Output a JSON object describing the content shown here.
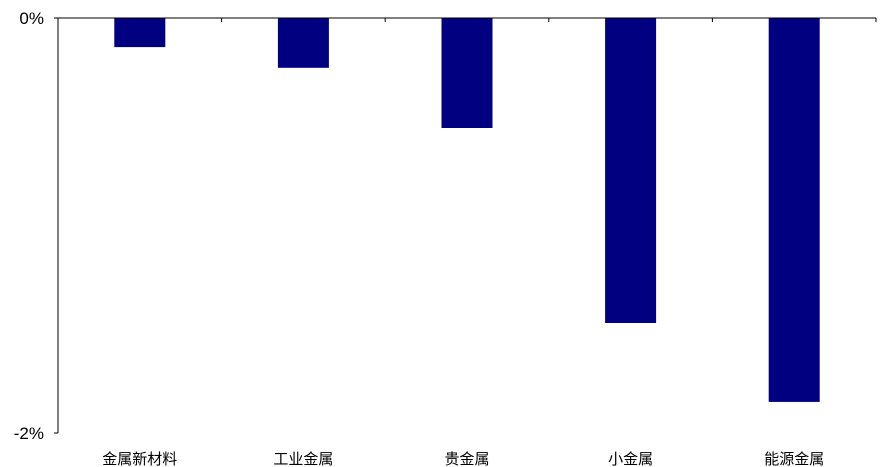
{
  "chart_data": {
    "type": "bar",
    "title": "",
    "xlabel": "",
    "ylabel": "",
    "categories": [
      "金属新材料",
      "工业金属",
      "贵金属",
      "小金属",
      "能源金属"
    ],
    "values": [
      -0.14,
      -0.24,
      -0.53,
      -1.47,
      -1.85
    ],
    "unit": "%",
    "ylim": [
      -2,
      0
    ],
    "yticks": [
      {
        "value": 0,
        "label": "0%"
      },
      {
        "value": -2,
        "label": "-2%"
      }
    ],
    "x_axis_position": "top",
    "grid": false,
    "legend": "none",
    "bar_color": "#000080",
    "axis_color": "#000000"
  }
}
